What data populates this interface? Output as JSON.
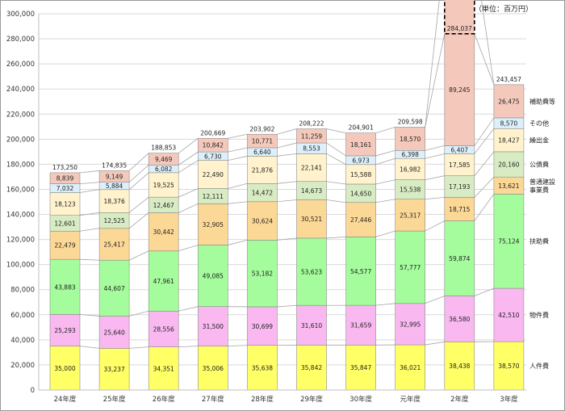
{
  "unit_label": "（単位：百万円）",
  "chart_data": {
    "type": "bar",
    "stacked": true,
    "title": "",
    "xlabel": "",
    "ylabel": "",
    "ylim": [
      0,
      300000
    ],
    "yticks": [
      0,
      20000,
      40000,
      60000,
      80000,
      100000,
      120000,
      140000,
      160000,
      180000,
      200000,
      220000,
      240000,
      260000,
      280000,
      300000
    ],
    "ytick_labels": [
      "0",
      "20,000",
      "40,000",
      "60,000",
      "80,000",
      "100,000",
      "120,000",
      "140,000",
      "160,000",
      "180,000",
      "200,000",
      "220,000",
      "240,000",
      "260,000",
      "280,000",
      "300,000"
    ],
    "grid": true,
    "legend": "labels on the right of the last bar",
    "categories": [
      "24年度",
      "25年度",
      "26年度",
      "27年度",
      "28年度",
      "29年度",
      "30年度",
      "元年度",
      "2年度",
      "3年度"
    ],
    "series": [
      {
        "name": "人件費",
        "color": "#ffff66",
        "values": [
          35000,
          33237,
          34351,
          35006,
          35638,
          35842,
          35847,
          36021,
          38438,
          38570
        ],
        "labels": [
          "35,000",
          "33,237",
          "34,351",
          "35,006",
          "35,638",
          "35,842",
          "35,847",
          "36,021",
          "38,438",
          "38,570"
        ]
      },
      {
        "name": "物件費",
        "color": "#f9b8f0",
        "values": [
          25293,
          25640,
          28556,
          31500,
          30699,
          31610,
          31659,
          32995,
          36580,
          42510
        ],
        "labels": [
          "25,293",
          "25,640",
          "28,556",
          "31,500",
          "30,699",
          "31,610",
          "31,659",
          "32,995",
          "36,580",
          "42,510"
        ]
      },
      {
        "name": "扶助費",
        "color": "#a4fc9c",
        "values": [
          43883,
          44607,
          47961,
          49085,
          53182,
          53623,
          54577,
          57777,
          59874,
          75124
        ],
        "labels": [
          "43,883",
          "44,607",
          "47,961",
          "49,085",
          "53,182",
          "53,623",
          "54,577",
          "57,777",
          "59,874",
          "75,124"
        ]
      },
      {
        "name": "普通建設事業費",
        "color": "#fcd896",
        "values": [
          22479,
          25417,
          30442,
          32905,
          30624,
          30521,
          27446,
          25317,
          18715,
          13621
        ],
        "labels": [
          "22,479",
          "25,417",
          "30,442",
          "32,905",
          "30,624",
          "30,521",
          "27,446",
          "25,317",
          "18,715",
          "13,621"
        ]
      },
      {
        "name": "公債費",
        "color": "#d8ecc4",
        "values": [
          12601,
          12525,
          12467,
          12111,
          14472,
          14673,
          14650,
          15538,
          17193,
          20160
        ],
        "labels": [
          "12,601",
          "12,525",
          "12,467",
          "12,111",
          "14,472",
          "14,673",
          "14,650",
          "15,538",
          "17,193",
          "20,160"
        ]
      },
      {
        "name": "繰出金",
        "color": "#fff2cc",
        "values": [
          18123,
          18376,
          19525,
          22490,
          21876,
          22141,
          15588,
          16982,
          17585,
          18427
        ],
        "labels": [
          "18,123",
          "18,376",
          "19,525",
          "22,490",
          "21,876",
          "22,141",
          "15,588",
          "16,982",
          "17,585",
          "18,427"
        ]
      },
      {
        "name": "その他",
        "color": "#dcf0fc",
        "values": [
          7032,
          5884,
          6082,
          6730,
          6640,
          8553,
          6973,
          6398,
          6407,
          8570
        ],
        "labels": [
          "7,032",
          "5,884",
          "6,082",
          "6,730",
          "6,640",
          "8,553",
          "6,973",
          "6,398",
          "6,407",
          "8,570"
        ]
      },
      {
        "name": "補助費等",
        "color": "#f4c9bc",
        "values": [
          8839,
          9149,
          9469,
          10842,
          10771,
          11259,
          18161,
          18570,
          89245,
          26475
        ],
        "labels": [
          "8,839",
          "9,149",
          "9,469",
          "10,842",
          "10,771",
          "11,259",
          "18,161",
          "18,570",
          "89,245",
          "26,475"
        ]
      }
    ],
    "extra_segment": {
      "category": "2年度",
      "series": "補助費等",
      "value": 64261,
      "label": "64,261",
      "style": "dashed outline"
    },
    "totals": [
      173250,
      174835,
      188853,
      200669,
      203902,
      208222,
      204901,
      209598,
      284037,
      243457
    ],
    "total_labels": [
      "173,250",
      "174,835",
      "188,853",
      "200,669",
      "203,902",
      "208,222",
      "204,901",
      "209,598",
      "284,037",
      "243,457"
    ],
    "legend_labels": [
      {
        "series": "補助費等",
        "lines": [
          "補助費等"
        ]
      },
      {
        "series": "その他",
        "lines": [
          "その他"
        ]
      },
      {
        "series": "繰出金",
        "lines": [
          "繰出金"
        ]
      },
      {
        "series": "公債費",
        "lines": [
          "公債費"
        ]
      },
      {
        "series": "普通建設事業費",
        "lines": [
          "普通建設",
          "事業費"
        ]
      },
      {
        "series": "扶助費",
        "lines": [
          "扶助費"
        ]
      },
      {
        "series": "物件費",
        "lines": [
          "物件費"
        ]
      },
      {
        "series": "人件費",
        "lines": [
          "人件費"
        ]
      }
    ]
  }
}
